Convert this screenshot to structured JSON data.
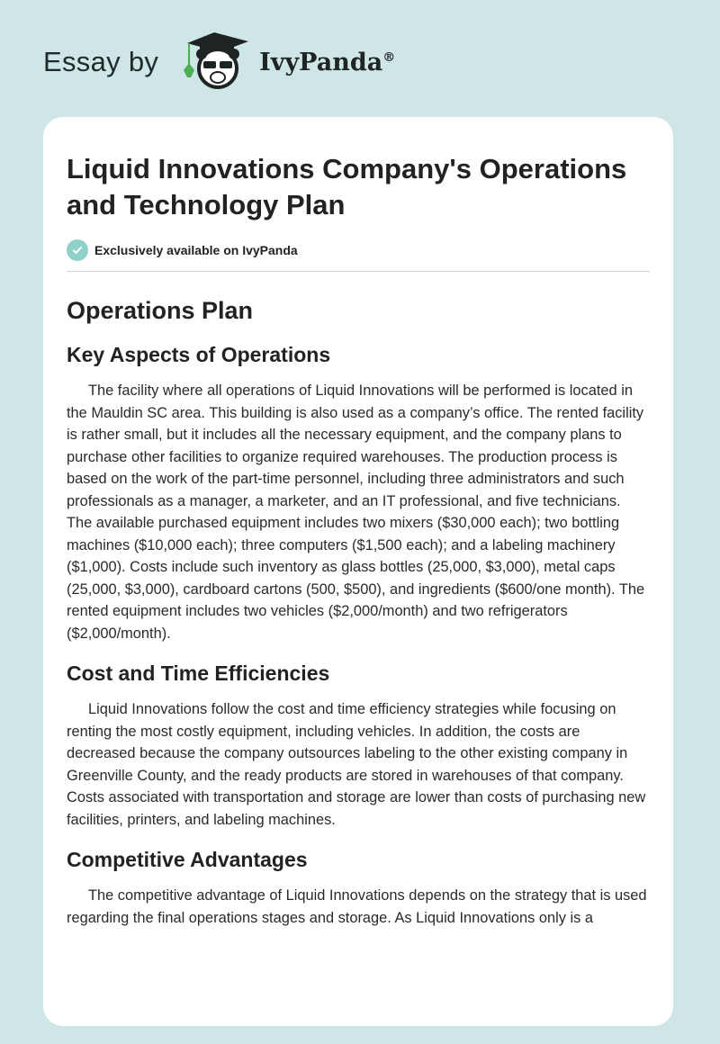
{
  "header": {
    "essay_by": "Essay by",
    "brand": "IvyPanda",
    "registered": "®"
  },
  "article": {
    "title": "Liquid Innovations Company's Operations and Technology Plan",
    "badge": "Exclusively available on IvyPanda",
    "section": "Operations Plan",
    "subsections": [
      {
        "heading": "Key Aspects of Operations",
        "text": "The facility where all operations of Liquid Innovations will be performed is located in the Mauldin SC area. This building is also used as a company’s office. The rented facility is rather small, but it includes all the necessary equipment, and the company plans to purchase other facilities to organize required warehouses. The production process is based on the work of the part-time personnel, including three administrators and such professionals as a manager, a marketer, and an IT professional, and five technicians. The available purchased equipment includes two mixers ($30,000 each); two bottling machines ($10,000 each); three computers ($1,500 each); and a labeling machinery ($1,000). Costs include such inventory as glass bottles (25,000, $3,000), metal caps (25,000, $3,000), cardboard cartons (500, $500), and ingredients ($600/one month). The rented equipment includes two vehicles ($2,000/month) and two refrigerators ($2,000/month)."
      },
      {
        "heading": "Cost and Time Efficiencies",
        "text": "Liquid Innovations follow the cost and time efficiency strategies while focusing on renting the most costly equipment, including vehicles. In addition, the costs are decreased because the company outsources labeling to the other existing company in Greenville County, and the ready products are stored in warehouses of that company. Costs associated with transportation and storage are lower than costs of purchasing new facilities, printers, and labeling machines."
      },
      {
        "heading": "Competitive Advantages",
        "text": "The competitive advantage of Liquid Innovations depends on the strategy that is used regarding the final operations stages and storage. As Liquid Innovations only is a"
      }
    ]
  }
}
